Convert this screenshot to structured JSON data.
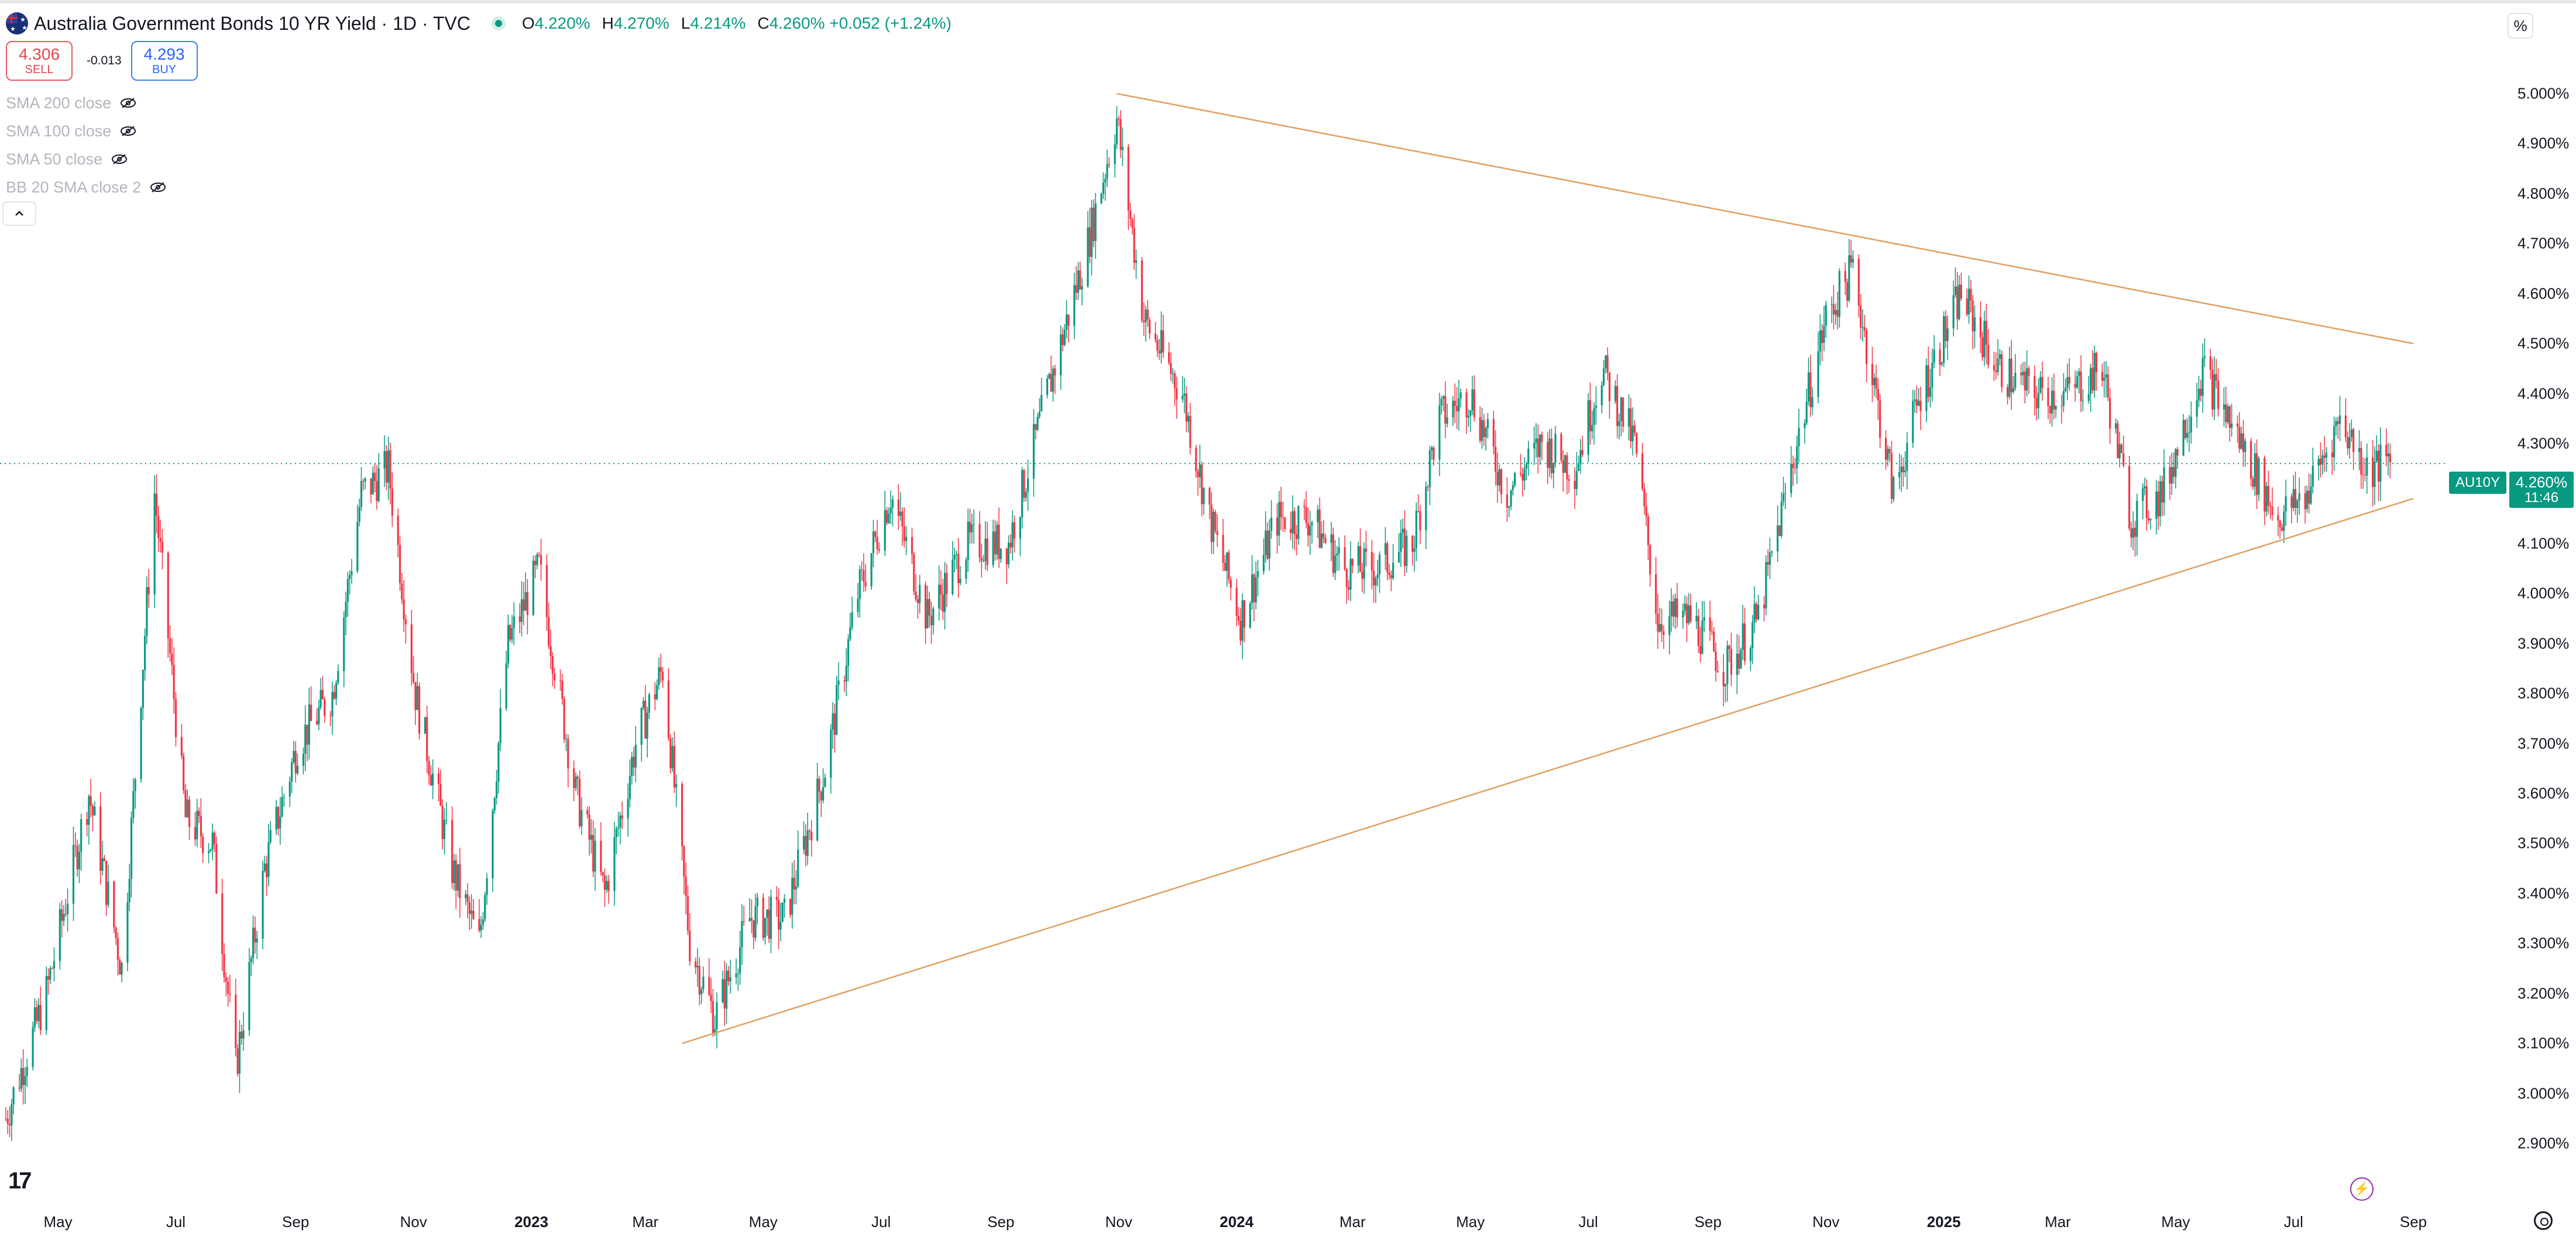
{
  "header": {
    "title": "Australia Government Bonds 10 YR Yield · 1D · TVC",
    "ohlc": [
      {
        "key": "O",
        "value": "4.220%"
      },
      {
        "key": "H",
        "value": "4.270%"
      },
      {
        "key": "L",
        "value": "4.214%"
      },
      {
        "key": "C",
        "value": "4.260% +0.052 (+1.24%)"
      }
    ]
  },
  "trade": {
    "sell_price": "4.306",
    "sell_label": "SELL",
    "spread": "-0.013",
    "buy_price": "4.293",
    "buy_label": "BUY"
  },
  "indicators": [
    {
      "label": "SMA 200 close"
    },
    {
      "label": "SMA 100 close"
    },
    {
      "label": "SMA 50 close"
    },
    {
      "label": "BB 20 SMA close 2"
    }
  ],
  "price_axis": {
    "unit": "%",
    "ticks": [
      "5.000%",
      "4.900%",
      "4.800%",
      "4.700%",
      "4.600%",
      "4.500%",
      "4.400%",
      "4.300%",
      "4.200%",
      "4.100%",
      "4.000%",
      "3.900%",
      "3.800%",
      "3.700%",
      "3.600%",
      "3.500%",
      "3.400%",
      "3.300%",
      "3.200%",
      "3.100%",
      "3.000%",
      "2.900%"
    ]
  },
  "last_price": {
    "symbol": "AU10Y",
    "value": "4.260%",
    "countdown": "11:46"
  },
  "time_axis": {
    "labels": [
      {
        "text": "May",
        "bold": false
      },
      {
        "text": "Jul",
        "bold": false
      },
      {
        "text": "Sep",
        "bold": false
      },
      {
        "text": "Nov",
        "bold": false
      },
      {
        "text": "2023",
        "bold": true
      },
      {
        "text": "Mar",
        "bold": false
      },
      {
        "text": "May",
        "bold": false
      },
      {
        "text": "Jul",
        "bold": false
      },
      {
        "text": "Sep",
        "bold": false
      },
      {
        "text": "Nov",
        "bold": false
      },
      {
        "text": "2024",
        "bold": true
      },
      {
        "text": "Mar",
        "bold": false
      },
      {
        "text": "May",
        "bold": false
      },
      {
        "text": "Jul",
        "bold": false
      },
      {
        "text": "Sep",
        "bold": false
      },
      {
        "text": "Nov",
        "bold": false
      },
      {
        "text": "2025",
        "bold": true
      },
      {
        "text": "Mar",
        "bold": false
      },
      {
        "text": "May",
        "bold": false
      },
      {
        "text": "Jul",
        "bold": false
      },
      {
        "text": "Sep",
        "bold": false
      }
    ]
  },
  "chart_data": {
    "type": "line",
    "y_unit": "%",
    "ylim": [
      2.9,
      5.03
    ],
    "x_start": "2022-04-01",
    "x_end": "2025-09-10",
    "series": [
      {
        "values": [
          {
            "x": "2022-04-04",
            "y": 2.95
          },
          {
            "x": "2022-04-25",
            "y": 3.2
          },
          {
            "x": "2022-05-17",
            "y": 3.6
          },
          {
            "x": "2022-06-03",
            "y": 3.25
          },
          {
            "x": "2022-06-20",
            "y": 4.2
          },
          {
            "x": "2022-07-06",
            "y": 3.55
          },
          {
            "x": "2022-07-20",
            "y": 3.5
          },
          {
            "x": "2022-08-01",
            "y": 3.05
          },
          {
            "x": "2022-08-16",
            "y": 3.45
          },
          {
            "x": "2022-09-02",
            "y": 3.7
          },
          {
            "x": "2022-09-20",
            "y": 3.8
          },
          {
            "x": "2022-10-05",
            "y": 4.2
          },
          {
            "x": "2022-10-19",
            "y": 4.25
          },
          {
            "x": "2022-11-02",
            "y": 3.8
          },
          {
            "x": "2022-11-21",
            "y": 3.45
          },
          {
            "x": "2022-12-05",
            "y": 3.3
          },
          {
            "x": "2022-12-20",
            "y": 3.9
          },
          {
            "x": "2023-01-05",
            "y": 4.05
          },
          {
            "x": "2023-01-24",
            "y": 3.6
          },
          {
            "x": "2023-02-08",
            "y": 3.4
          },
          {
            "x": "2023-02-24",
            "y": 3.7
          },
          {
            "x": "2023-03-10",
            "y": 3.85
          },
          {
            "x": "2023-03-24",
            "y": 3.3
          },
          {
            "x": "2023-04-06",
            "y": 3.15
          },
          {
            "x": "2023-04-24",
            "y": 3.35
          },
          {
            "x": "2023-05-12",
            "y": 3.35
          },
          {
            "x": "2023-06-02",
            "y": 3.65
          },
          {
            "x": "2023-06-19",
            "y": 4.0
          },
          {
            "x": "2023-07-06",
            "y": 4.2
          },
          {
            "x": "2023-07-25",
            "y": 3.95
          },
          {
            "x": "2023-08-15",
            "y": 4.1
          },
          {
            "x": "2023-09-05",
            "y": 4.1
          },
          {
            "x": "2023-09-25",
            "y": 4.4
          },
          {
            "x": "2023-10-16",
            "y": 4.7
          },
          {
            "x": "2023-10-31",
            "y": 4.95
          },
          {
            "x": "2023-11-14",
            "y": 4.55
          },
          {
            "x": "2023-12-04",
            "y": 4.4
          },
          {
            "x": "2023-12-18",
            "y": 4.15
          },
          {
            "x": "2024-01-03",
            "y": 3.95
          },
          {
            "x": "2024-01-22",
            "y": 4.15
          },
          {
            "x": "2024-02-08",
            "y": 4.15
          },
          {
            "x": "2024-02-26",
            "y": 4.05
          },
          {
            "x": "2024-03-14",
            "y": 4.05
          },
          {
            "x": "2024-04-01",
            "y": 4.1
          },
          {
            "x": "2024-04-15",
            "y": 4.35
          },
          {
            "x": "2024-05-01",
            "y": 4.4
          },
          {
            "x": "2024-05-20",
            "y": 4.2
          },
          {
            "x": "2024-06-07",
            "y": 4.3
          },
          {
            "x": "2024-06-24",
            "y": 4.25
          },
          {
            "x": "2024-07-08",
            "y": 4.45
          },
          {
            "x": "2024-07-25",
            "y": 4.3
          },
          {
            "x": "2024-08-06",
            "y": 3.95
          },
          {
            "x": "2024-08-23",
            "y": 3.95
          },
          {
            "x": "2024-09-10",
            "y": 3.85
          },
          {
            "x": "2024-09-27",
            "y": 3.95
          },
          {
            "x": "2024-10-14",
            "y": 4.25
          },
          {
            "x": "2024-11-01",
            "y": 4.55
          },
          {
            "x": "2024-11-15",
            "y": 4.65
          },
          {
            "x": "2024-12-06",
            "y": 4.2
          },
          {
            "x": "2024-12-20",
            "y": 4.4
          },
          {
            "x": "2025-01-10",
            "y": 4.6
          },
          {
            "x": "2025-01-29",
            "y": 4.45
          },
          {
            "x": "2025-02-17",
            "y": 4.4
          },
          {
            "x": "2025-03-06",
            "y": 4.4
          },
          {
            "x": "2025-03-24",
            "y": 4.45
          },
          {
            "x": "2025-04-08",
            "y": 4.15
          },
          {
            "x": "2025-04-24",
            "y": 4.2
          },
          {
            "x": "2025-05-15",
            "y": 4.45
          },
          {
            "x": "2025-06-04",
            "y": 4.3
          },
          {
            "x": "2025-06-23",
            "y": 4.15
          },
          {
            "x": "2025-07-08",
            "y": 4.2
          },
          {
            "x": "2025-07-25",
            "y": 4.35
          },
          {
            "x": "2025-08-08",
            "y": 4.25
          },
          {
            "x": "2025-08-20",
            "y": 4.26
          }
        ]
      }
    ],
    "trendlines": [
      {
        "from": {
          "x": "2023-10-31",
          "y": 5.0
        },
        "to": {
          "x": "2025-09-01",
          "y": 4.5
        }
      },
      {
        "from": {
          "x": "2023-03-20",
          "y": 3.1
        },
        "to": {
          "x": "2025-09-01",
          "y": 4.19
        }
      }
    ],
    "last_value_line": 4.26
  },
  "colors": {
    "up": "#089981",
    "down": "#f23645",
    "trendline": "#e0a060",
    "accent": "#089981",
    "text": "#131722"
  }
}
